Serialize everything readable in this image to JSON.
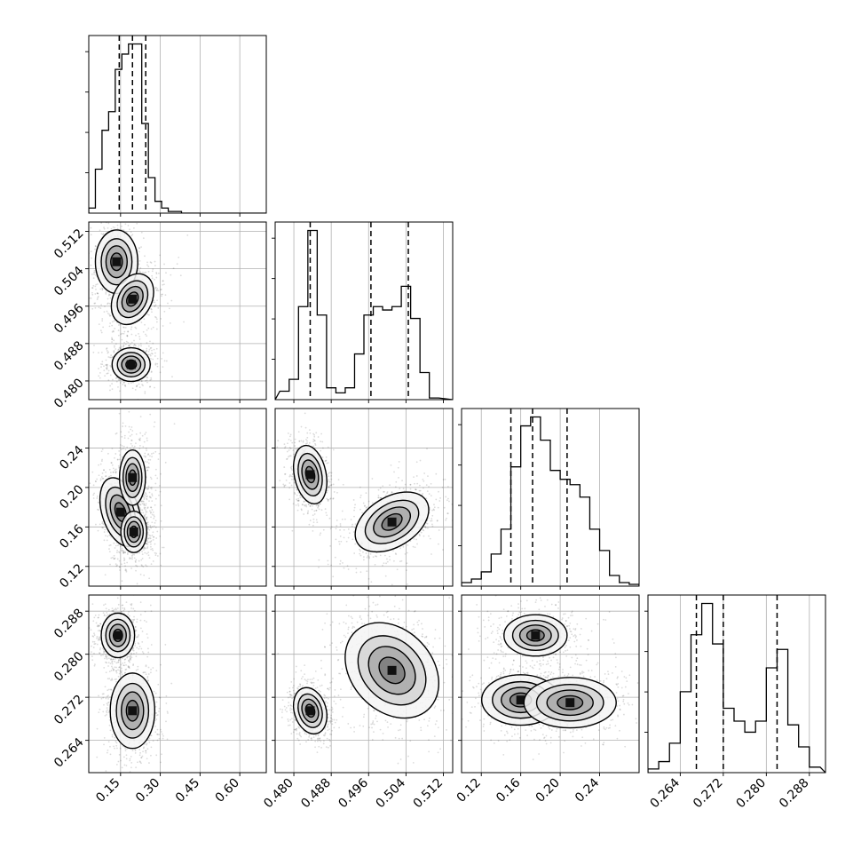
{
  "chart_data": {
    "type": "corner",
    "grid": true,
    "parameters": [
      {
        "range": [
          0.03,
          0.7
        ],
        "ticks": [
          0.15,
          0.3,
          0.45,
          0.6
        ],
        "tick_labels": [
          "0.15",
          "0.30",
          "0.45",
          "0.60"
        ],
        "quantiles": [
          0.145,
          0.195,
          0.245
        ],
        "hist_bins": [
          0.03,
          0.055,
          0.08,
          0.105,
          0.13,
          0.155,
          0.18,
          0.205,
          0.23,
          0.255,
          0.28,
          0.305,
          0.33,
          0.355,
          0.38,
          0.405
        ],
        "hist_values": [
          0.03,
          0.26,
          0.49,
          0.6,
          0.85,
          0.94,
          1.0,
          1.0,
          0.53,
          0.21,
          0.07,
          0.03,
          0.01,
          0.01,
          0.0
        ]
      },
      {
        "range": [
          0.476,
          0.514
        ],
        "ticks": [
          0.48,
          0.488,
          0.496,
          0.504,
          0.512
        ],
        "tick_labels": [
          "0.480",
          "0.488",
          "0.496",
          "0.504",
          "0.512"
        ],
        "quantiles": [
          0.4835,
          0.4965,
          0.5045
        ],
        "hist_bins": [
          0.477,
          0.479,
          0.481,
          0.483,
          0.485,
          0.487,
          0.489,
          0.491,
          0.493,
          0.495,
          0.497,
          0.499,
          0.501,
          0.503,
          0.505,
          0.507,
          0.509,
          0.511
        ],
        "hist_values": [
          0.05,
          0.12,
          0.55,
          1.0,
          0.5,
          0.07,
          0.04,
          0.07,
          0.27,
          0.5,
          0.55,
          0.53,
          0.55,
          0.67,
          0.48,
          0.16,
          0.01
        ]
      },
      {
        "range": [
          0.1,
          0.28
        ],
        "ticks": [
          0.12,
          0.16,
          0.2,
          0.24
        ],
        "tick_labels": [
          "0.12",
          "0.16",
          "0.20",
          "0.24"
        ],
        "quantiles": [
          0.15,
          0.172,
          0.207
        ],
        "hist_bins": [
          0.1,
          0.11,
          0.12,
          0.13,
          0.14,
          0.15,
          0.16,
          0.17,
          0.18,
          0.19,
          0.2,
          0.21,
          0.22,
          0.23,
          0.24,
          0.25,
          0.26,
          0.27,
          0.28
        ],
        "hist_values": [
          0.02,
          0.04,
          0.08,
          0.18,
          0.32,
          0.67,
          0.9,
          0.95,
          0.82,
          0.65,
          0.6,
          0.57,
          0.5,
          0.32,
          0.2,
          0.06,
          0.02,
          0.01
        ],
        "bin_width": 0.01
      },
      {
        "range": [
          0.258,
          0.291
        ],
        "ticks": [
          0.264,
          0.272,
          0.28,
          0.288
        ],
        "tick_labels": [
          "0.264",
          "0.272",
          "0.280",
          "0.288"
        ],
        "quantiles": [
          0.267,
          0.272,
          0.282
        ],
        "hist_bins": [
          0.258,
          0.26,
          0.262,
          0.264,
          0.266,
          0.268,
          0.27,
          0.272,
          0.274,
          0.276,
          0.278,
          0.28,
          0.282,
          0.284,
          0.286,
          0.288,
          0.29
        ],
        "hist_values": [
          0.02,
          0.06,
          0.16,
          0.44,
          0.75,
          0.92,
          0.7,
          0.35,
          0.28,
          0.22,
          0.28,
          0.57,
          0.67,
          0.26,
          0.14,
          0.03
        ]
      }
    ],
    "pair_modes": {
      "1-0": [
        {
          "cx": 0.135,
          "cy": 0.5055,
          "sx": 0.04,
          "sy": 0.0034,
          "w": 1.0,
          "rot": 0
        },
        {
          "cx": 0.195,
          "cy": 0.4975,
          "sx": 0.045,
          "sy": 0.0036,
          "w": 0.8,
          "rot": -0.5
        },
        {
          "cx": 0.19,
          "cy": 0.4835,
          "sx": 0.04,
          "sy": 0.002,
          "w": 0.9,
          "rot": 0
        }
      ],
      "2-0": [
        {
          "cx": 0.15,
          "cy": 0.175,
          "sx": 0.035,
          "sy": 0.018,
          "w": 1.0,
          "rot": 0.3
        },
        {
          "cx": 0.195,
          "cy": 0.21,
          "sx": 0.035,
          "sy": 0.02,
          "w": 0.7,
          "rot": 0
        },
        {
          "cx": 0.2,
          "cy": 0.155,
          "sx": 0.035,
          "sy": 0.015,
          "w": 0.7,
          "rot": 0
        }
      ],
      "2-1": [
        {
          "cx": 0.4835,
          "cy": 0.213,
          "sx": 0.0017,
          "sy": 0.015,
          "w": 1.0,
          "rot": 0.2
        },
        {
          "cx": 0.501,
          "cy": 0.165,
          "sx": 0.0048,
          "sy": 0.014,
          "w": 0.9,
          "rot": 0.55
        }
      ],
      "3-0": [
        {
          "cx": 0.14,
          "cy": 0.2835,
          "sx": 0.035,
          "sy": 0.0023,
          "w": 0.9,
          "rot": 0
        },
        {
          "cx": 0.195,
          "cy": 0.2695,
          "sx": 0.042,
          "sy": 0.0035,
          "w": 1.0,
          "rot": 0
        }
      ],
      "3-1": [
        {
          "cx": 0.4835,
          "cy": 0.2695,
          "sx": 0.0017,
          "sy": 0.0022,
          "w": 1.0,
          "rot": 0.3
        },
        {
          "cx": 0.501,
          "cy": 0.277,
          "sx": 0.0048,
          "sy": 0.0055,
          "w": 0.9,
          "rot": 0.75
        }
      ],
      "3-2": [
        {
          "cx": 0.175,
          "cy": 0.2835,
          "sx": 0.02,
          "sy": 0.0024,
          "w": 0.8,
          "rot": 0
        },
        {
          "cx": 0.16,
          "cy": 0.2715,
          "sx": 0.022,
          "sy": 0.0026,
          "w": 0.9,
          "rot": 0
        },
        {
          "cx": 0.21,
          "cy": 0.271,
          "sx": 0.026,
          "sy": 0.0026,
          "w": 0.9,
          "rot": 0
        }
      ]
    },
    "contour_levels": [
      0.12,
      0.32,
      0.58,
      0.82
    ]
  }
}
